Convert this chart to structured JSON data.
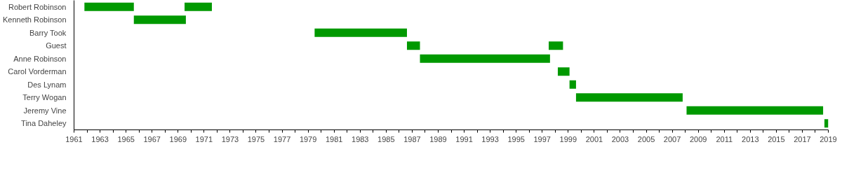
{
  "chart_data": {
    "type": "bar",
    "orientation": "horizontal",
    "categories": [
      "Robert Robinson",
      "Kenneth Robinson",
      "Barry Took",
      "Guest",
      "Anne Robinson",
      "Carol Vorderman",
      "Des Lynam",
      "Terry Wogan",
      "Jeremy Vine",
      "Tina Daheley"
    ],
    "series": [
      {
        "color": "#009900",
        "base": [
          1961.8,
          1965.6,
          1979.5,
          1986.6,
          1987.6,
          1998.2,
          1999.1,
          1999.6,
          2008.1,
          2018.7
        ],
        "values": [
          3.8,
          4.0,
          7.1,
          1.0,
          10.0,
          0.9,
          0.5,
          8.2,
          10.5,
          0.3
        ]
      },
      {
        "color": "#009900",
        "base": [
          1969.5,
          null,
          null,
          1997.5,
          null,
          null,
          null,
          null,
          null,
          null
        ],
        "values": [
          2.1,
          null,
          null,
          1.1,
          null,
          null,
          null,
          null,
          null,
          null
        ]
      }
    ],
    "xlim": [
      1961,
      2019
    ],
    "xticks": [
      1961,
      {
        "value": 1962,
        "label": null
      },
      1963,
      {
        "value": 1964,
        "label": null
      },
      1965,
      {
        "value": 1966,
        "label": null
      },
      1967,
      {
        "value": 1968,
        "label": null
      },
      1969,
      {
        "value": 1970,
        "label": null
      },
      1971,
      {
        "value": 1972,
        "label": null
      },
      1973,
      {
        "value": 1974,
        "label": null
      },
      1975,
      {
        "value": 1976,
        "label": null
      },
      1977,
      {
        "value": 1978,
        "label": null
      },
      1979,
      {
        "value": 1980,
        "label": null
      },
      1981,
      {
        "value": 1982,
        "label": null
      },
      1983,
      {
        "value": 1984,
        "label": null
      },
      1985,
      {
        "value": 1986,
        "label": null
      },
      1987,
      {
        "value": 1988,
        "label": null
      },
      1989,
      {
        "value": 1990,
        "label": null
      },
      1991,
      {
        "value": 1992,
        "label": null
      },
      1993,
      {
        "value": 1994,
        "label": null
      },
      1995,
      {
        "value": 1996,
        "label": null
      },
      1997,
      {
        "value": 1998,
        "label": null
      },
      1999,
      {
        "value": 2000,
        "label": null
      },
      2001,
      {
        "value": 2002,
        "label": null
      },
      2003,
      {
        "value": 2004,
        "label": null
      },
      2005,
      {
        "value": 2006,
        "label": null
      },
      2007,
      {
        "value": 2008,
        "label": null
      },
      2009,
      {
        "value": 2010,
        "label": null
      },
      2011,
      {
        "value": 2012,
        "label": null
      },
      2013,
      {
        "value": 2014,
        "label": null
      },
      2015,
      {
        "value": 2016,
        "label": null
      },
      2017,
      {
        "value": 2018,
        "label": null
      },
      2019
    ],
    "grid": false
  }
}
